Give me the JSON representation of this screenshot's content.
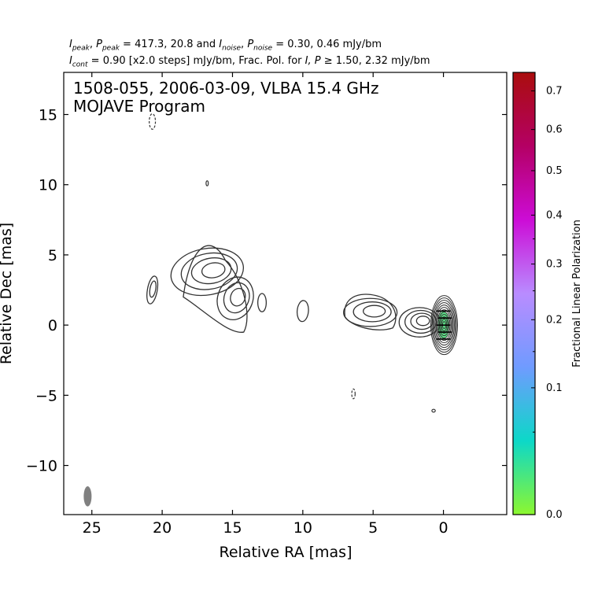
{
  "header": {
    "line1": {
      "i_sym": "I",
      "i_sub": "peak",
      "p_sym": "P",
      "p_sub": "peak",
      "peak_values": "417.3, 20.8",
      "noise_i_sym": "I",
      "noise_i_sub": "noise",
      "noise_p_sym": "P",
      "noise_p_sub": "noise",
      "noise_values": "0.30, 0.46 mJy/bm"
    },
    "line2": {
      "cont_sym": "I",
      "cont_sub": "cont",
      "cont_text": "= 0.90 [x2.0 steps] mJy/bm, Frac. Pol. for",
      "frac_syms": "I, P",
      "frac_text": "≥ 1.50, 2.32 mJy/bm"
    }
  },
  "chart_data": {
    "type": "contour",
    "title_line1": "1508-055, 2006-03-09, VLBA 15.4 GHz",
    "title_line2": "MOJAVE Program",
    "xlabel": "Relative RA [mas]",
    "ylabel": "Relative Dec [mas]",
    "xlim": [
      27,
      -4.5
    ],
    "ylim": [
      -13.5,
      18
    ],
    "xticks": [
      25,
      20,
      15,
      10,
      5,
      0
    ],
    "yticks": [
      15,
      10,
      5,
      0,
      -5,
      -10
    ],
    "xtick_labels": [
      "25",
      "20",
      "15",
      "10",
      "5",
      "0"
    ],
    "ytick_labels": [
      "15",
      "10",
      "5",
      "0",
      "−5",
      "−10"
    ],
    "contour_color": "#333333",
    "base_contour_mJy": 0.9,
    "contour_step_factor": 2.0,
    "core": {
      "ra": 0.0,
      "dec": 0.0,
      "levels": 12
    },
    "components": [
      {
        "ra": 16.8,
        "dec": 3.8,
        "levels": 4
      },
      {
        "ra": 14.8,
        "dec": 1.9,
        "levels": 3
      },
      {
        "ra": 20.7,
        "dec": 2.5,
        "levels": 2
      },
      {
        "ra": 12.9,
        "dec": 1.6,
        "levels": 1
      },
      {
        "ra": 10.0,
        "dec": 1.0,
        "levels": 1
      },
      {
        "ra": 5.2,
        "dec": 0.9,
        "levels": 3
      },
      {
        "ra": 1.7,
        "dec": 0.2,
        "levels": 4
      }
    ],
    "negative_contours": [
      {
        "ra": 20.7,
        "dec": 14.5
      },
      {
        "ra": 6.4,
        "dec": -4.9
      }
    ],
    "beam": {
      "ra": 25.3,
      "dec": -12.2,
      "color": "#808080"
    },
    "polarization_region": {
      "ra": 0.0,
      "dec": 0.0,
      "color": "#55e985"
    },
    "colorbar": {
      "label": "Fractional Linear Polarization",
      "ticks": [
        0.0,
        0.1,
        0.2,
        0.3,
        0.4,
        0.5,
        0.6,
        0.7
      ],
      "tick_labels": [
        "0.0",
        "0.1",
        "0.2",
        "0.3",
        "0.4",
        "0.5",
        "0.6",
        "0.7"
      ],
      "max": 0.75,
      "scale": "power",
      "colors": [
        "#8df72f",
        "#0cd8c8",
        "#6f9bff",
        "#b98cff",
        "#cc0cd6",
        "#b40064",
        "#aa0d0d"
      ]
    }
  }
}
